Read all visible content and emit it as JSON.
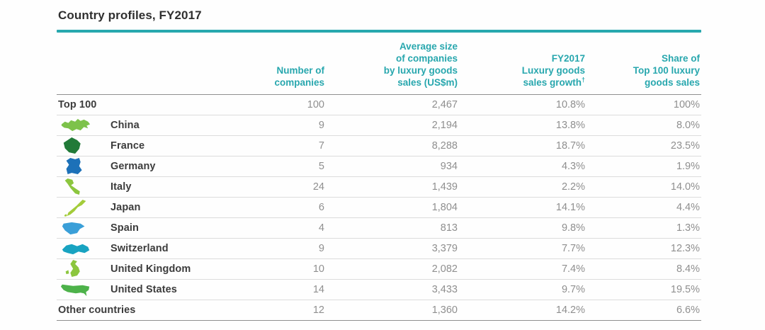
{
  "title": "Country profiles, FY2017",
  "colors": {
    "accent": "#28a7ae",
    "title_rule": "#28a8ae",
    "row_label": "#3c3c3c",
    "value_text": "#8f8f8f"
  },
  "table": {
    "columns": [
      {
        "label": "",
        "align": "left"
      },
      {
        "label": "Number of\ncompanies"
      },
      {
        "label": "Average size\nof companies\nby luxury goods\nsales (US$m)"
      },
      {
        "label": "FY2017\nLuxury goods\nsales growth",
        "note_marker": "†"
      },
      {
        "label": "Share of\nTop 100 luxury\ngoods sales"
      }
    ],
    "rows": [
      {
        "label": "Top 100",
        "icon": null,
        "icon_color": null,
        "values": [
          "100",
          "2,467",
          "10.8%",
          "100%"
        ]
      },
      {
        "label": "China",
        "icon": "china-map",
        "icon_color": "#7dc24a",
        "values": [
          "9",
          "2,194",
          "13.8%",
          "8.0%"
        ]
      },
      {
        "label": "France",
        "icon": "france-map",
        "icon_color": "#217a38",
        "values": [
          "7",
          "8,288",
          "18.7%",
          "23.5%"
        ]
      },
      {
        "label": "Germany",
        "icon": "germany-map",
        "icon_color": "#1d71b8",
        "values": [
          "5",
          "934",
          "4.3%",
          "1.9%"
        ]
      },
      {
        "label": "Italy",
        "icon": "italy-map",
        "icon_color": "#8cc63e",
        "values": [
          "24",
          "1,439",
          "2.2%",
          "14.0%"
        ]
      },
      {
        "label": "Japan",
        "icon": "japan-map",
        "icon_color": "#a3cc3a",
        "values": [
          "6",
          "1,804",
          "14.1%",
          "4.4%"
        ]
      },
      {
        "label": "Spain",
        "icon": "spain-map",
        "icon_color": "#3a9fd8",
        "values": [
          "4",
          "813",
          "9.8%",
          "1.3%"
        ]
      },
      {
        "label": "Switzerland",
        "icon": "switzerland-map",
        "icon_color": "#18a3c1",
        "values": [
          "9",
          "3,379",
          "7.7%",
          "12.3%"
        ]
      },
      {
        "label": "United Kingdom",
        "icon": "united-kingdom-map",
        "icon_color": "#8cc63e",
        "values": [
          "10",
          "2,082",
          "7.4%",
          "8.4%"
        ]
      },
      {
        "label": "United States",
        "icon": "united-states-map",
        "icon_color": "#4db24a",
        "values": [
          "14",
          "3,433",
          "9.7%",
          "19.5%"
        ]
      },
      {
        "label": "Other countries",
        "icon": null,
        "icon_color": null,
        "values": [
          "12",
          "1,360",
          "14.2%",
          "6.6%"
        ]
      }
    ]
  }
}
